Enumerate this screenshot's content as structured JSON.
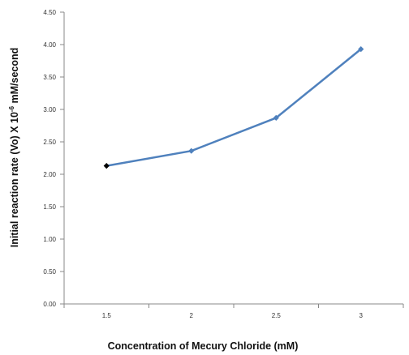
{
  "chart_data": {
    "type": "line",
    "title": "",
    "xlabel": "Concentration of  Mecury Chloride  (mM)",
    "ylabel": "Initial  reaction  rate  (Vo)  X 10",
    "ylabel_exp": "-6",
    "ylabel_unit": " mM/second",
    "categories": [
      "1.5",
      "2",
      "2.5",
      "3"
    ],
    "series": [
      {
        "values": [
          2.13,
          2.36,
          2.87,
          3.93
        ],
        "color": "#4F81BD"
      }
    ],
    "first_marker_color": "#000000",
    "ylim": [
      0,
      4.5
    ],
    "yticks": [
      "0.00",
      "0.50",
      "1.00",
      "1.50",
      "2.00",
      "2.50",
      "3.00",
      "3.50",
      "4.00",
      "4.50"
    ],
    "grid": false,
    "legend": "none"
  }
}
